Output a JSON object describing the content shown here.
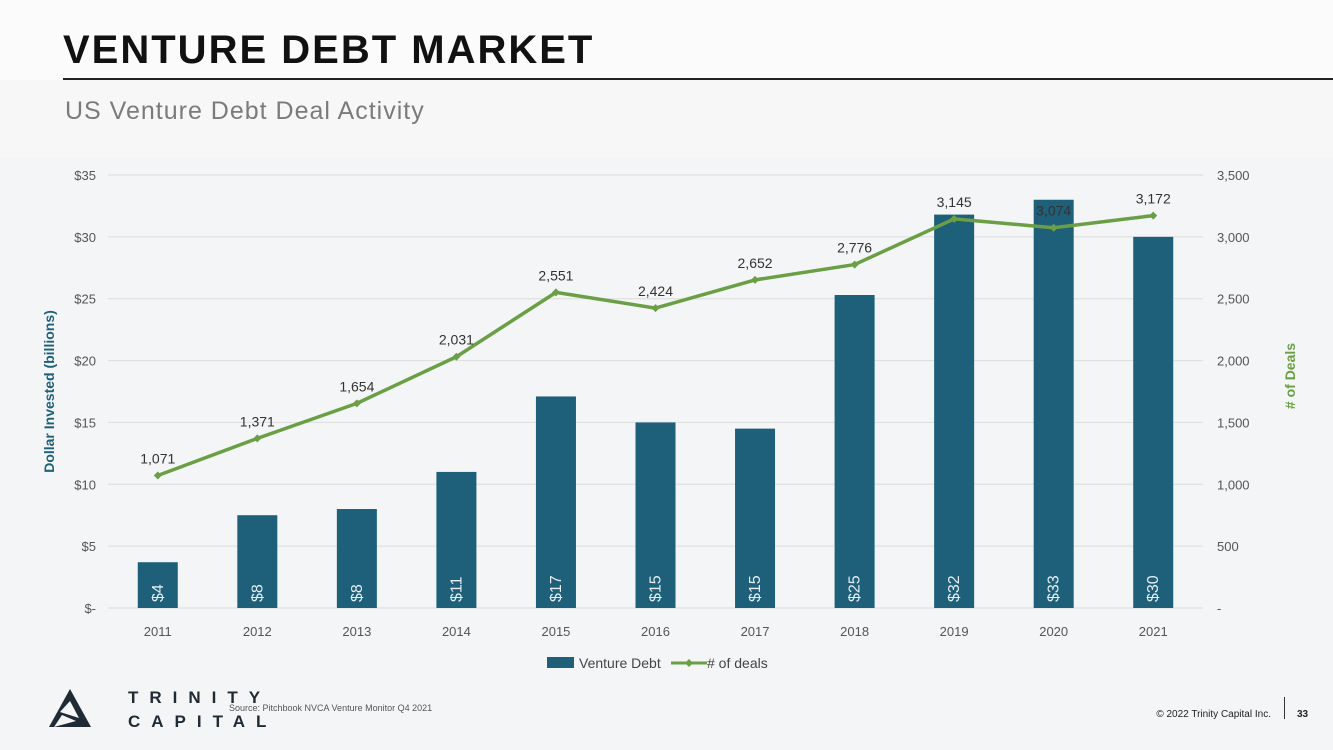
{
  "header": {
    "title": "VENTURE DEBT MARKET",
    "subtitle": "US Venture Debt Deal Activity"
  },
  "chart_data": {
    "type": "bar",
    "title": "",
    "categories": [
      "2011",
      "2012",
      "2013",
      "2014",
      "2015",
      "2016",
      "2017",
      "2018",
      "2019",
      "2020",
      "2021"
    ],
    "series": [
      {
        "name": "Venture Debt",
        "type": "bar",
        "axis": "left",
        "values": [
          3.7,
          7.5,
          8.0,
          11.0,
          17.1,
          15.0,
          14.5,
          25.3,
          31.8,
          33.0,
          30.0
        ],
        "labels": [
          "$4",
          "$8",
          "$8",
          "$11",
          "$17",
          "$15",
          "$15",
          "$25",
          "$32",
          "$33",
          "$30"
        ],
        "color": "#1e5f7a"
      },
      {
        "name": "# of deals",
        "type": "line",
        "axis": "right",
        "values": [
          1071,
          1371,
          1654,
          2031,
          2551,
          2424,
          2652,
          2776,
          3145,
          3074,
          3172
        ],
        "labels": [
          "1,071",
          "1,371",
          "1,654",
          "2,031",
          "2,551",
          "2,424",
          "2,652",
          "2,776",
          "3,145",
          "3,074",
          "3,172"
        ],
        "color": "#6a9f45"
      }
    ],
    "ylabel": "Dollar Invested (billions)",
    "y2label": "# of Deals",
    "ylim": [
      0,
      35
    ],
    "y2lim": [
      0,
      3500
    ],
    "yticks": [
      0,
      5,
      10,
      15,
      20,
      25,
      30,
      35
    ],
    "ytick_labels": [
      "$-",
      "$5",
      "$10",
      "$15",
      "$20",
      "$25",
      "$30",
      "$35"
    ],
    "y2ticks": [
      0,
      500,
      1000,
      1500,
      2000,
      2500,
      3000,
      3500
    ],
    "y2tick_labels": [
      "-",
      "500",
      "1,000",
      "1,500",
      "2,000",
      "2,500",
      "3,000",
      "3,500"
    ],
    "grid": true,
    "legend_position": "bottom",
    "ylabel_color": "#1e5f7a",
    "y2label_color": "#6a9f45"
  },
  "footer": {
    "logo_line1": "TRINITY",
    "logo_line2": "CAPITAL",
    "source": "Source: Pitchbook NVCA Venture Monitor Q4 2021",
    "copyright": "© 2022 Trinity Capital Inc.",
    "page_number": "33"
  }
}
